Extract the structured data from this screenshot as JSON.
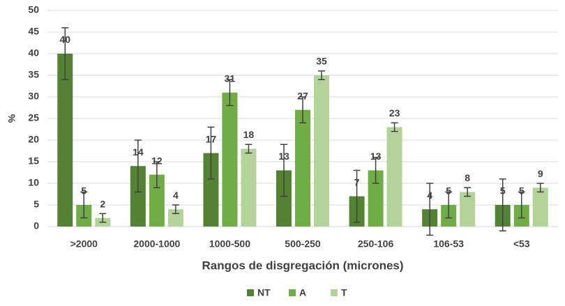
{
  "chart_data": {
    "type": "bar",
    "categories": [
      ">2000",
      "2000-1000",
      "1000-500",
      "500-250",
      "250-106",
      "106-53",
      "<53"
    ],
    "series": [
      {
        "name": "NT",
        "color": "#548235",
        "values": [
          40,
          14,
          17,
          13,
          7,
          4,
          5
        ],
        "errors": [
          6,
          6,
          6,
          6,
          6,
          6,
          6
        ]
      },
      {
        "name": "A",
        "color": "#70ad47",
        "values": [
          5,
          12,
          31,
          27,
          13,
          5,
          5
        ],
        "errors": [
          3,
          3,
          3,
          3,
          3,
          3,
          3
        ]
      },
      {
        "name": "T",
        "color": "#b4d39b",
        "values": [
          2,
          4,
          18,
          35,
          23,
          8,
          9
        ],
        "errors": [
          1,
          1,
          1,
          1,
          1,
          1,
          1
        ]
      }
    ],
    "xlabel": "Rangos de disgregación (micrones)",
    "ylabel": "%",
    "ylim": [
      0,
      50
    ],
    "yticks": [
      0,
      5,
      10,
      15,
      20,
      25,
      30,
      35,
      40,
      45,
      50
    ],
    "grid": true,
    "legend": "bottom"
  }
}
